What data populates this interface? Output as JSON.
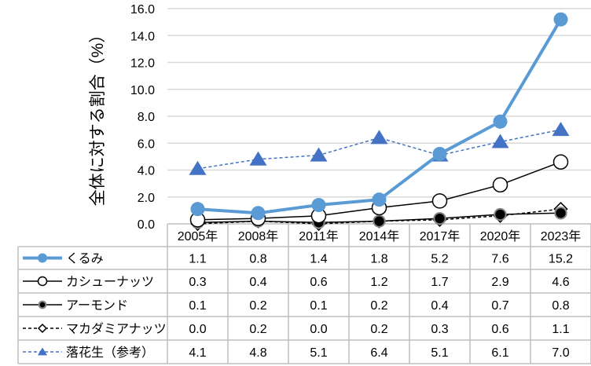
{
  "chart_data": {
    "type": "line",
    "ylabel": "全体に対する割合（%）",
    "ylim": [
      0,
      16
    ],
    "yticks": [
      "0.0",
      "2.0",
      "4.0",
      "6.0",
      "8.0",
      "10.0",
      "12.0",
      "14.0",
      "16.0"
    ],
    "grid": true,
    "legend_placement": "data-table",
    "categories": [
      "2005年",
      "2008年",
      "2011年",
      "2014年",
      "2017年",
      "2020年",
      "2023年"
    ],
    "series": [
      {
        "name": "くるみ",
        "values": [
          1.1,
          0.8,
          1.4,
          1.8,
          5.2,
          7.6,
          15.2
        ],
        "labels": [
          "1.1",
          "0.8",
          "1.4",
          "1.8",
          "5.2",
          "7.6",
          "15.2"
        ],
        "color": "#5b9bd5",
        "marker": "circle-filled",
        "line": "solid-thick"
      },
      {
        "name": "カシューナッツ",
        "values": [
          0.3,
          0.4,
          0.6,
          1.2,
          1.7,
          2.9,
          4.6
        ],
        "labels": [
          "0.3",
          "0.4",
          "0.6",
          "1.2",
          "1.7",
          "2.9",
          "4.6"
        ],
        "color": "#000000",
        "marker": "circle-open",
        "line": "solid"
      },
      {
        "name": "アーモンド",
        "values": [
          0.1,
          0.2,
          0.1,
          0.2,
          0.4,
          0.7,
          0.8
        ],
        "labels": [
          "0.1",
          "0.2",
          "0.1",
          "0.2",
          "0.4",
          "0.7",
          "0.8"
        ],
        "color": "#000000",
        "marker": "circle-filled-black",
        "line": "solid"
      },
      {
        "name": "マカダミアナッツ",
        "values": [
          0.0,
          0.2,
          0.0,
          0.2,
          0.3,
          0.6,
          1.1
        ],
        "labels": [
          "0.0",
          "0.2",
          "0.0",
          "0.2",
          "0.3",
          "0.6",
          "1.1"
        ],
        "color": "#000000",
        "marker": "diamond-open",
        "line": "dashed"
      },
      {
        "name": "落花生（参考）",
        "values": [
          4.1,
          4.8,
          5.1,
          6.4,
          5.1,
          6.1,
          7.0
        ],
        "labels": [
          "4.1",
          "4.8",
          "5.1",
          "6.4",
          "5.1",
          "6.1",
          "7.0"
        ],
        "color": "#4472c4",
        "marker": "triangle",
        "line": "dashed"
      }
    ]
  }
}
